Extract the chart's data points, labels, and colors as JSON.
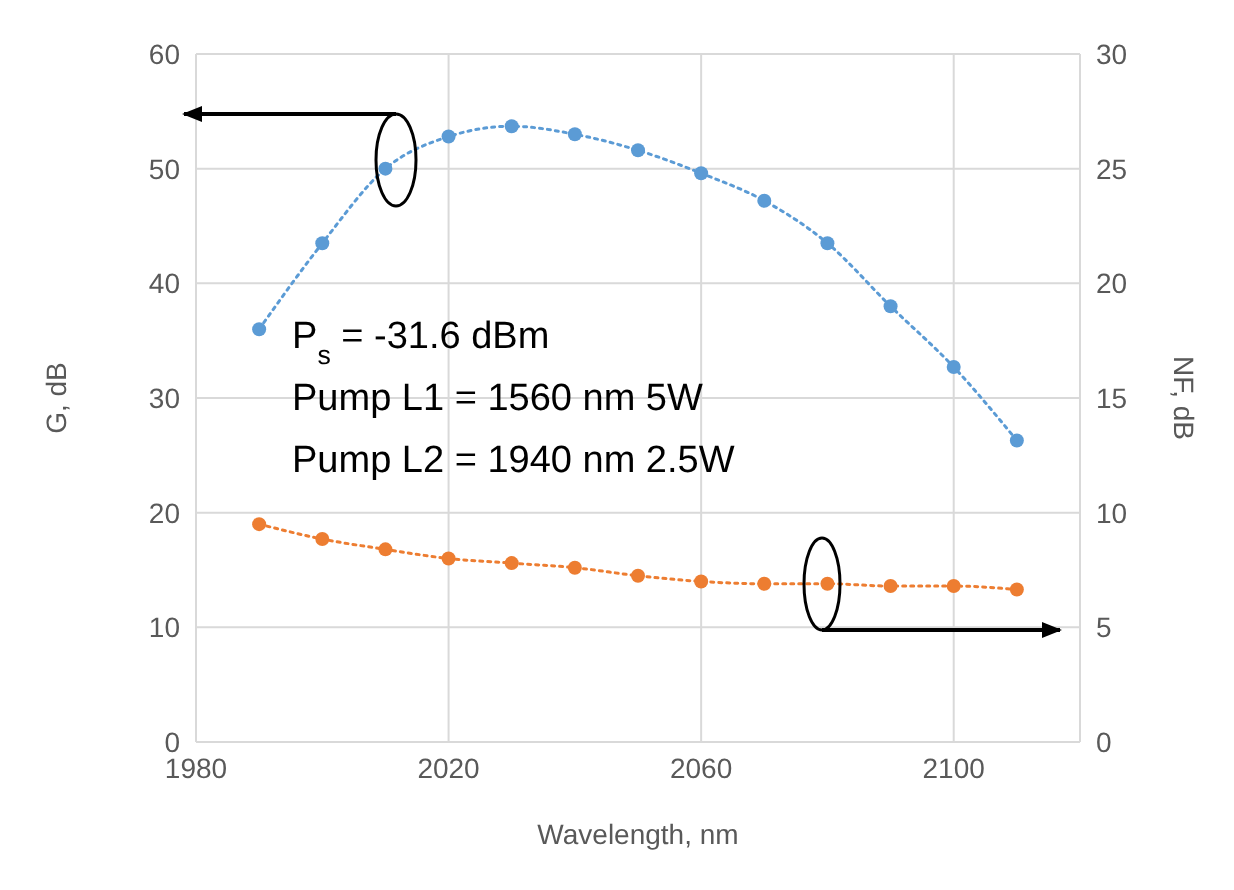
{
  "chart_data": {
    "type": "line",
    "xlabel": "Wavelength, nm",
    "ylabel": "G, dB",
    "y2label": "NF, dB",
    "x": [
      1990,
      2000,
      2010,
      2020,
      2030,
      2040,
      2050,
      2060,
      2070,
      2080,
      2090,
      2100,
      2110
    ],
    "series": [
      {
        "color": "#5b9bd5",
        "values": [
          36.0,
          43.5,
          50.0,
          52.8,
          53.7,
          53.0,
          51.6,
          49.6,
          47.2,
          43.5,
          38.0,
          32.7,
          26.3
        ]
      },
      {
        "color": "#ed7d31",
        "axis": "y2",
        "values": [
          9.5,
          8.85,
          8.4,
          8.0,
          7.8,
          7.6,
          7.25,
          7.0,
          6.9,
          6.9,
          6.8,
          6.8,
          6.65
        ]
      }
    ],
    "xlim": [
      1980,
      2120
    ],
    "xticks": [
      1980,
      2020,
      2060,
      2100
    ],
    "ylim": [
      0,
      60
    ],
    "yticks": [
      0,
      10,
      20,
      30,
      40,
      50,
      60
    ],
    "y2lim": [
      0,
      30
    ],
    "y2ticks": [
      0,
      5,
      10,
      15,
      20,
      25,
      30
    ],
    "grid": true,
    "marker": "circle",
    "line_style": "dotted",
    "annotations": [
      "P$_{s}$ = -31.6 dBm",
      "Pump L1 = 1560 nm 5W",
      "Pump L2 = 1940 nm 2.5W"
    ]
  }
}
